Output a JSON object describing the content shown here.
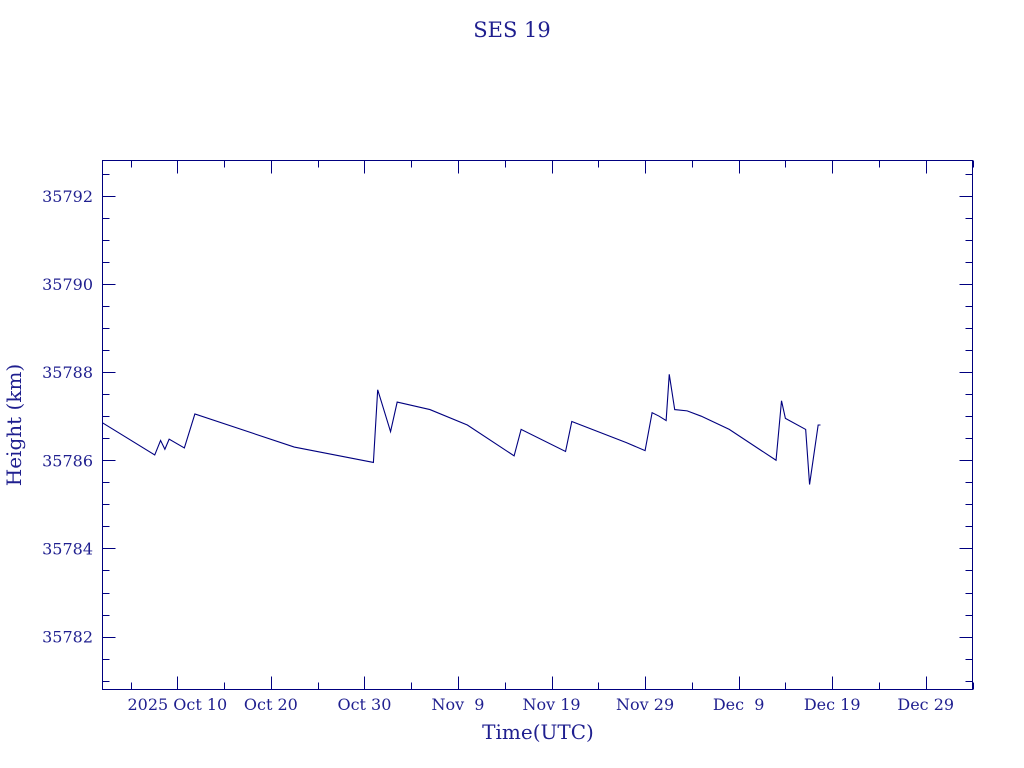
{
  "chart_data": {
    "type": "line",
    "title": "SES 19",
    "xlabel": "Time(UTC)",
    "ylabel": "Height (km)",
    "ylim": [
      35780.8,
      35792.8
    ],
    "xlim": [
      "2025-10-02",
      "2026-01-03"
    ],
    "grid": false,
    "y_ticks": [
      35782,
      35784,
      35786,
      35788,
      35790,
      35792
    ],
    "y_tick_labels": [
      "35782",
      "35784",
      "35786",
      "35788",
      "35790",
      "35792"
    ],
    "x_ticks": [
      "2025-10-10",
      "2025-10-20",
      "2025-10-30",
      "2025-11-09",
      "2025-11-19",
      "2025-11-29",
      "2025-12-09",
      "2025-12-19",
      "2025-12-29"
    ],
    "x_tick_labels": [
      "2025 Oct 10",
      "Oct 20",
      "Oct 30",
      "Nov  9",
      "Nov 19",
      "Nov 29",
      "Dec  9",
      "Dec 19",
      "Dec 29"
    ],
    "series": [
      {
        "color": "#00007f",
        "points": [
          [
            "2025-10-02T00:00",
            35786.85
          ],
          [
            "2025-10-07T14:00",
            35786.12
          ],
          [
            "2025-10-08T05:00",
            35786.45
          ],
          [
            "2025-10-08T16:00",
            35786.25
          ],
          [
            "2025-10-09T03:00",
            35786.48
          ],
          [
            "2025-10-10T18:00",
            35786.28
          ],
          [
            "2025-10-11T21:00",
            35787.05
          ],
          [
            "2025-10-22T12:00",
            35786.3
          ],
          [
            "2025-10-30T23:00",
            35785.95
          ],
          [
            "2025-10-31T10:00",
            35787.6
          ],
          [
            "2025-11-01T19:00",
            35786.65
          ],
          [
            "2025-11-02T12:00",
            35787.32
          ],
          [
            "2025-11-06T00:00",
            35787.15
          ],
          [
            "2025-11-10T00:00",
            35786.8
          ],
          [
            "2025-11-15T00:00",
            35786.1
          ],
          [
            "2025-11-15T18:00",
            35786.7
          ],
          [
            "2025-11-20T12:00",
            35786.2
          ],
          [
            "2025-11-21T04:00",
            35786.88
          ],
          [
            "2025-11-27T00:00",
            35786.4
          ],
          [
            "2025-11-29T00:00",
            35786.22
          ],
          [
            "2025-11-29T18:00",
            35787.08
          ],
          [
            "2025-11-30T12:00",
            35787.0
          ],
          [
            "2025-12-01T06:00",
            35786.9
          ],
          [
            "2025-12-01T14:00",
            35787.95
          ],
          [
            "2025-12-02T04:00",
            35787.15
          ],
          [
            "2025-12-03T12:00",
            35787.12
          ],
          [
            "2025-12-05T00:00",
            35787.0
          ],
          [
            "2025-12-08T00:00",
            35786.7
          ],
          [
            "2025-12-13T00:00",
            35786.0
          ],
          [
            "2025-12-13T14:00",
            35787.35
          ],
          [
            "2025-12-14T00:00",
            35786.95
          ],
          [
            "2025-12-16T04:00",
            35786.7
          ],
          [
            "2025-12-16T14:00",
            35785.45
          ],
          [
            "2025-12-17T12:00",
            35786.8
          ],
          [
            "2025-12-17T18:00",
            35786.8
          ]
        ]
      }
    ]
  }
}
